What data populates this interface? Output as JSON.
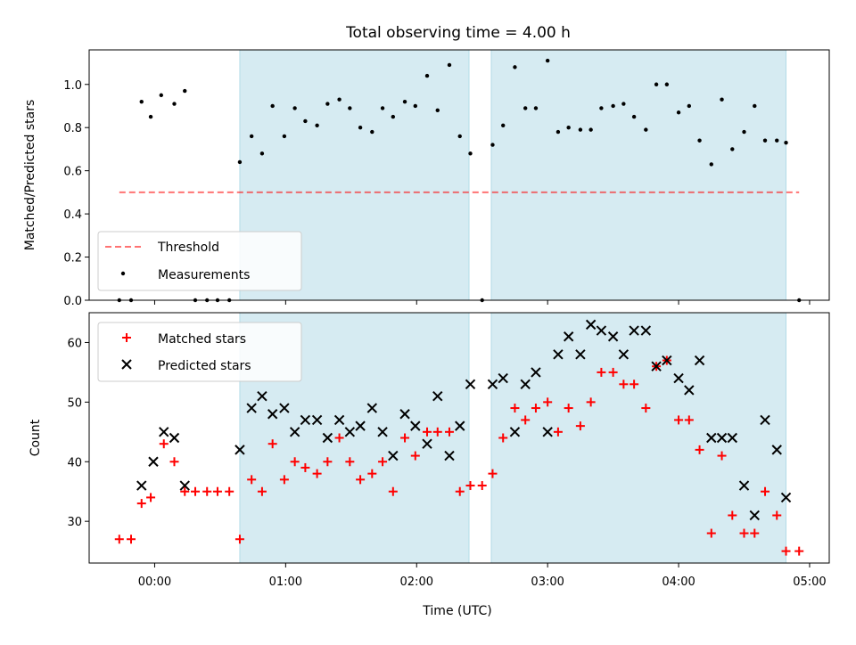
{
  "title": "Total observing time = 4.00 h",
  "colors": {
    "shade": "#add8e6",
    "threshold": "#ff0000",
    "measurement": "#000000",
    "matched": "#ff0000",
    "predicted": "#000000"
  },
  "chart_data": [
    {
      "type": "scatter",
      "ylabel": "Matched/Predicted stars",
      "xlim": [
        -0.5,
        5.15
      ],
      "ylim": [
        0,
        1.16
      ],
      "yticks": [
        0.0,
        0.2,
        0.4,
        0.6,
        0.8,
        1.0
      ],
      "ytick_labels": [
        "0.0",
        "0.2",
        "0.4",
        "0.6",
        "0.8",
        "1.0"
      ],
      "shaded_ranges": [
        [
          0.65,
          2.4
        ],
        [
          2.57,
          4.82
        ]
      ],
      "legend": {
        "position": "lower-left",
        "entries": [
          "Threshold",
          "Measurements"
        ]
      },
      "threshold": {
        "name": "Threshold",
        "y": 0.5,
        "x_range": [
          -0.27,
          4.92
        ],
        "style": "dashed"
      },
      "series": [
        {
          "name": "Measurements",
          "marker": "dot",
          "x": [
            -0.27,
            -0.18,
            -0.1,
            -0.03,
            0.05,
            0.15,
            0.23,
            0.31,
            0.4,
            0.48,
            0.57,
            0.65,
            0.74,
            0.82,
            0.9,
            0.99,
            1.07,
            1.15,
            1.24,
            1.32,
            1.41,
            1.49,
            1.57,
            1.66,
            1.74,
            1.82,
            1.91,
            1.99,
            2.08,
            2.16,
            2.25,
            2.33,
            2.41,
            2.5,
            2.58,
            2.66,
            2.75,
            2.83,
            2.91,
            3.0,
            3.08,
            3.16,
            3.25,
            3.33,
            3.41,
            3.5,
            3.58,
            3.66,
            3.75,
            3.83,
            3.91,
            4.0,
            4.08,
            4.16,
            4.25,
            4.33,
            4.41,
            4.5,
            4.58,
            4.66,
            4.75,
            4.82,
            4.92
          ],
          "y": [
            0.0,
            0.0,
            0.92,
            0.85,
            0.95,
            0.91,
            0.97,
            0.0,
            0.0,
            0.0,
            0.0,
            0.64,
            0.76,
            0.68,
            0.9,
            0.76,
            0.89,
            0.83,
            0.81,
            0.91,
            0.93,
            0.89,
            0.8,
            0.78,
            0.89,
            0.85,
            0.92,
            0.9,
            1.04,
            0.88,
            1.09,
            0.76,
            0.68,
            0.0,
            0.72,
            0.81,
            1.08,
            0.89,
            0.89,
            1.11,
            0.78,
            0.8,
            0.79,
            0.79,
            0.89,
            0.9,
            0.91,
            0.85,
            0.79,
            1.0,
            1.0,
            0.87,
            0.9,
            0.74,
            0.63,
            0.93,
            0.7,
            0.78,
            0.9,
            0.74,
            0.74,
            0.73,
            0.0
          ]
        }
      ]
    },
    {
      "type": "scatter",
      "xlabel": "Time (UTC)",
      "ylabel": "Count",
      "xlim": [
        -0.5,
        5.15
      ],
      "ylim": [
        23,
        65
      ],
      "xticks": [
        0,
        1,
        2,
        3,
        4,
        5
      ],
      "xtick_labels": [
        "00:00",
        "01:00",
        "02:00",
        "03:00",
        "04:00",
        "05:00"
      ],
      "yticks": [
        30,
        40,
        50,
        60
      ],
      "ytick_labels": [
        "30",
        "40",
        "50",
        "60"
      ],
      "shaded_ranges": [
        [
          0.65,
          2.4
        ],
        [
          2.57,
          4.82
        ]
      ],
      "legend": {
        "position": "upper-left",
        "entries": [
          "Matched stars",
          "Predicted stars"
        ]
      },
      "series": [
        {
          "name": "Matched stars",
          "marker": "plus",
          "x": [
            -0.27,
            -0.18,
            -0.1,
            -0.03,
            0.07,
            0.15,
            0.23,
            0.31,
            0.4,
            0.48,
            0.57,
            0.65,
            0.74,
            0.82,
            0.9,
            0.99,
            1.07,
            1.15,
            1.24,
            1.32,
            1.41,
            1.49,
            1.57,
            1.66,
            1.74,
            1.82,
            1.91,
            1.99,
            2.08,
            2.16,
            2.25,
            2.33,
            2.41,
            2.5,
            2.58,
            2.66,
            2.75,
            2.83,
            2.91,
            3.0,
            3.08,
            3.16,
            3.25,
            3.33,
            3.41,
            3.5,
            3.58,
            3.66,
            3.75,
            3.83,
            3.91,
            4.0,
            4.08,
            4.16,
            4.25,
            4.33,
            4.41,
            4.5,
            4.58,
            4.66,
            4.75,
            4.82,
            4.92
          ],
          "y": [
            27,
            27,
            33,
            34,
            43,
            40,
            35,
            35,
            35,
            35,
            35,
            27,
            37,
            35,
            43,
            37,
            40,
            39,
            38,
            40,
            44,
            40,
            37,
            38,
            40,
            35,
            44,
            41,
            45,
            45,
            45,
            35,
            36,
            36,
            38,
            44,
            49,
            47,
            49,
            50,
            45,
            49,
            46,
            50,
            55,
            55,
            53,
            53,
            49,
            56,
            57,
            47,
            47,
            42,
            28,
            41,
            31,
            28,
            28,
            35,
            31,
            25,
            25
          ]
        },
        {
          "name": "Predicted stars",
          "marker": "x",
          "x": [
            -0.1,
            -0.01,
            0.07,
            0.15,
            0.23,
            0.65,
            0.74,
            0.82,
            0.9,
            0.99,
            1.07,
            1.15,
            1.24,
            1.32,
            1.41,
            1.49,
            1.57,
            1.66,
            1.74,
            1.82,
            1.91,
            1.99,
            2.08,
            2.16,
            2.25,
            2.33,
            2.41,
            2.58,
            2.66,
            2.75,
            2.83,
            2.91,
            3.0,
            3.08,
            3.16,
            3.25,
            3.33,
            3.41,
            3.5,
            3.58,
            3.66,
            3.75,
            3.83,
            3.91,
            4.0,
            4.08,
            4.16,
            4.25,
            4.33,
            4.41,
            4.5,
            4.58,
            4.66,
            4.75,
            4.82
          ],
          "y": [
            36,
            40,
            45,
            44,
            36,
            42,
            49,
            51,
            48,
            49,
            45,
            47,
            47,
            44,
            47,
            45,
            46,
            49,
            45,
            41,
            48,
            46,
            43,
            51,
            41,
            46,
            53,
            53,
            54,
            45,
            53,
            55,
            45,
            58,
            61,
            58,
            63,
            62,
            61,
            58,
            62,
            62,
            56,
            57,
            54,
            52,
            57,
            44,
            44,
            44,
            36,
            31,
            47,
            42,
            34
          ]
        }
      ]
    }
  ]
}
